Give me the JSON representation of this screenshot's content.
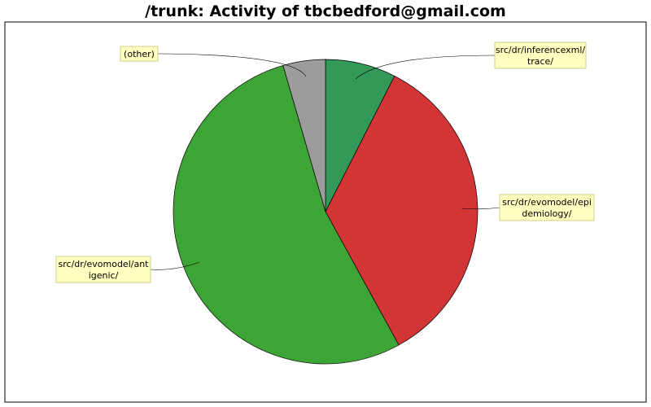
{
  "chart_data": {
    "type": "pie",
    "title": "/trunk: Activity of tbcbedford@gmail.com",
    "slices": [
      {
        "label_lines": [
          "src/dr/inferencexml/",
          "trace/"
        ],
        "value": 7.5,
        "color": "#339959"
      },
      {
        "label_lines": [
          "src/dr/evomodel/epi",
          "demiology/"
        ],
        "value": 34.5,
        "color": "#d13535"
      },
      {
        "label_lines": [
          "src/dr/evomodel/ant",
          "igenic/"
        ],
        "value": 53.5,
        "color": "#3da535"
      },
      {
        "label_lines": [
          "(other)"
        ],
        "value": 4.5,
        "color": "#9c9c9c"
      }
    ]
  }
}
